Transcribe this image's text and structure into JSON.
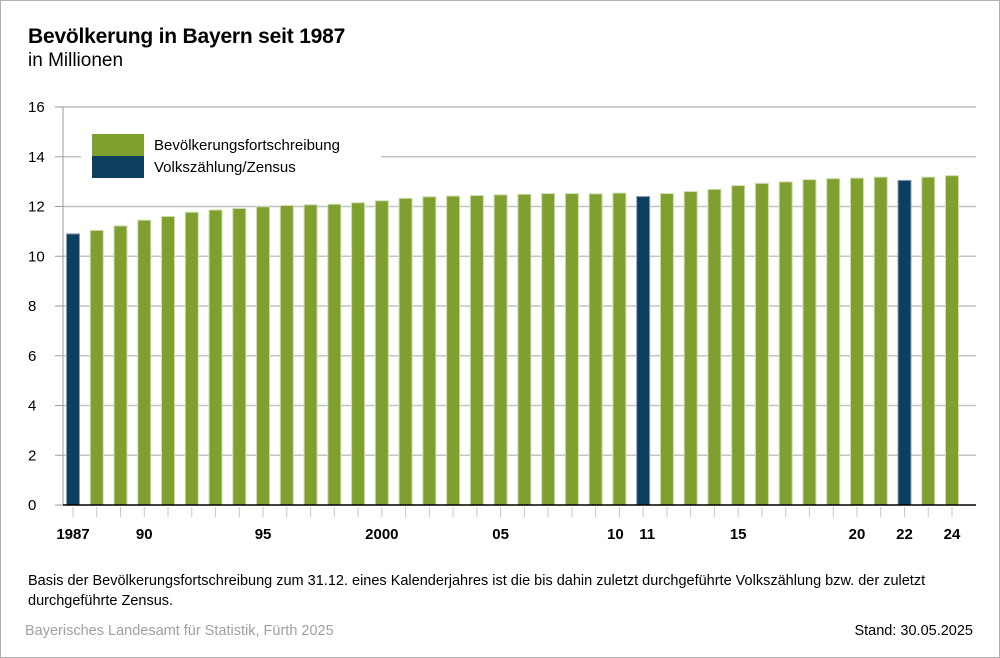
{
  "chart_data": {
    "type": "bar",
    "title": "Bevölkerung in Bayern seit 1987",
    "subtitle": "in Millionen",
    "xlabel": "",
    "ylabel": "",
    "ylim": [
      0,
      16
    ],
    "yticks": [
      "0",
      "2",
      "4",
      "6",
      "8",
      "10",
      "12",
      "14",
      "16"
    ],
    "grid": true,
    "legend_position": "top-left",
    "categories": [
      1987,
      1988,
      1989,
      1990,
      1991,
      1992,
      1993,
      1994,
      1995,
      1996,
      1997,
      1998,
      1999,
      2000,
      2001,
      2002,
      2003,
      2004,
      2005,
      2006,
      2007,
      2008,
      2009,
      2010,
      2011,
      2012,
      2013,
      2014,
      2015,
      2016,
      2017,
      2018,
      2019,
      2020,
      2021,
      2022,
      2023,
      2024
    ],
    "xtick_labels": [
      {
        "year": 1987,
        "label": "1987"
      },
      {
        "year": 1990,
        "label": "90"
      },
      {
        "year": 1995,
        "label": "95"
      },
      {
        "year": 2000,
        "label": "2000"
      },
      {
        "year": 2005,
        "label": "05"
      },
      {
        "year": 2010,
        "label": "10"
      },
      {
        "year": 2011,
        "label": "11"
      },
      {
        "year": 2015,
        "label": "15"
      },
      {
        "year": 2020,
        "label": "20"
      },
      {
        "year": 2022,
        "label": "22"
      },
      {
        "year": 2024,
        "label": "24"
      }
    ],
    "values": [
      10.9,
      11.04,
      11.22,
      11.45,
      11.6,
      11.77,
      11.86,
      11.92,
      11.99,
      12.04,
      12.07,
      12.09,
      12.15,
      12.23,
      12.33,
      12.39,
      12.42,
      12.44,
      12.47,
      12.49,
      12.52,
      12.52,
      12.51,
      12.54,
      12.4,
      12.52,
      12.6,
      12.69,
      12.84,
      12.93,
      12.99,
      13.08,
      13.12,
      13.14,
      13.18,
      13.05,
      13.18,
      13.24
    ],
    "series_type": [
      "census",
      "update",
      "update",
      "update",
      "update",
      "update",
      "update",
      "update",
      "update",
      "update",
      "update",
      "update",
      "update",
      "update",
      "update",
      "update",
      "update",
      "update",
      "update",
      "update",
      "update",
      "update",
      "update",
      "update",
      "census",
      "update",
      "update",
      "update",
      "update",
      "update",
      "update",
      "update",
      "update",
      "update",
      "update",
      "census",
      "update",
      "update"
    ],
    "legend": [
      {
        "key": "update",
        "label": "Bevölkerungsfortschreibung",
        "color": "#7fa02e"
      },
      {
        "key": "census",
        "label": "Volkszählung/Zensus",
        "color": "#0d3f5e"
      }
    ]
  },
  "footer": {
    "note": "Basis der Bevölkerungsfortschreibung zum 31.12. eines Kalenderjahres ist die bis dahin zuletzt durchgeführte Volkszählung bzw. der zuletzt durchgeführte Zensus.",
    "source": "Bayerisches Landesamt für Statistik, Fürth 2025",
    "stand": "Stand: 30.05.2025"
  }
}
